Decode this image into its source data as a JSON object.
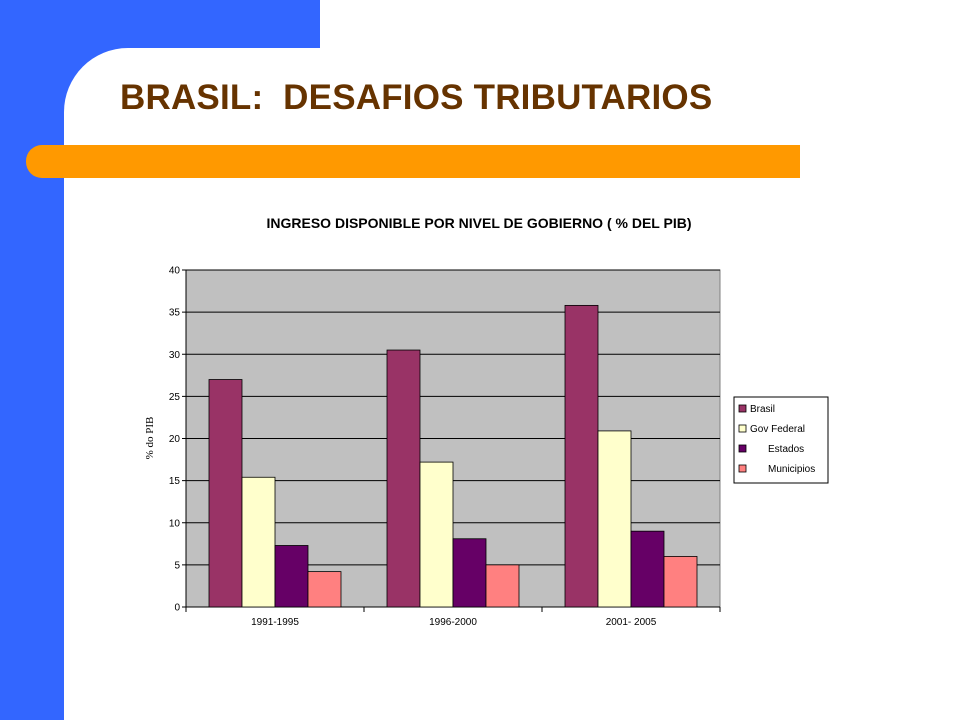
{
  "slide": {
    "title": "BRASIL:  DESAFIOS TRIBUTARIOS",
    "colors": {
      "left_panel": "#3366ff",
      "accent_bar": "#ff9900",
      "title": "#663300"
    }
  },
  "chart_data": {
    "type": "bar",
    "title": "INGRESO DISPONIBLE POR NIVEL DE GOBIERNO ( % DEL PIB)",
    "xlabel": "",
    "ylabel": "% do PIB",
    "ylim": [
      0,
      40
    ],
    "yticks": [
      0,
      5,
      10,
      15,
      20,
      25,
      30,
      35,
      40
    ],
    "grid": true,
    "plot_background": "#c0c0c0",
    "legend_position": "right",
    "categories": [
      "1991-1995",
      "1996-2000",
      "2001- 2005"
    ],
    "series": [
      {
        "name": "Brasil",
        "color": "#993366",
        "values": [
          27.0,
          30.5,
          35.8
        ]
      },
      {
        "name": "Gov Federal",
        "color": "#ffffcc",
        "values": [
          15.4,
          17.2,
          20.9
        ]
      },
      {
        "name": "Estados",
        "color": "#660066",
        "values": [
          7.3,
          8.1,
          9.0
        ]
      },
      {
        "name": "Municipios",
        "color": "#ff8080",
        "values": [
          4.2,
          5.0,
          6.0
        ]
      }
    ]
  }
}
